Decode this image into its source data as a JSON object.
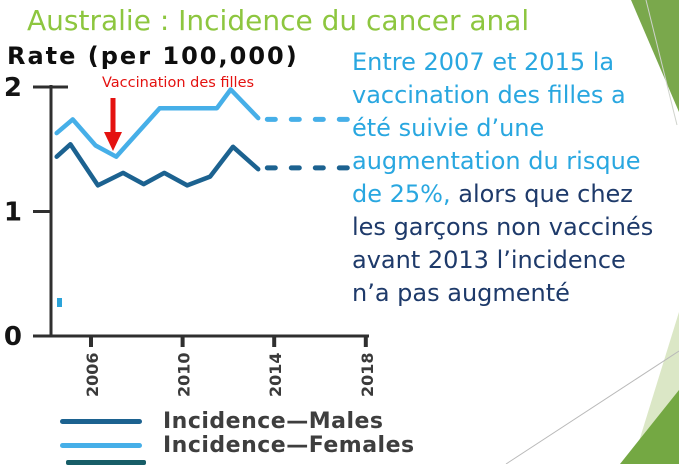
{
  "slide": {
    "title": "Australie : Incidence du cancer anal"
  },
  "colors": {
    "title_green": "#8dc63f",
    "accent": "#29a7e0",
    "dark": "#1e3a6a",
    "red": "#e41210",
    "males": "#1c6290",
    "females": "#46afe8",
    "axis": "#2f2f2f",
    "tick_label": "#3a3a3a",
    "legend_text": "#3e3e3e",
    "deco_green": "#7aa84c",
    "deco_green_dark": "#74a843",
    "deco_green_pale": "#dbe7c6",
    "legend_third": "#175d67",
    "axis_artifact": "#2ba3d9"
  },
  "chart_data": {
    "type": "line",
    "title": "Rate (per 100,000)",
    "xlabel": "",
    "ylabel": "Rate (per 100,000)",
    "xlim": [
      2004.2,
      2018.6
    ],
    "ylim": [
      0,
      2
    ],
    "x_ticks": [
      2006,
      2010,
      2014,
      2018
    ],
    "y_ticks": [
      0,
      1,
      2
    ],
    "grid": false,
    "legend_position": "bottom",
    "annotation": {
      "text": "Vaccination des filles",
      "arrow_points_to_year": 2007,
      "arrow_points_to_value": 1.44
    },
    "series": [
      {
        "name": "Incidence—Males",
        "style": "solid",
        "color_key": "males",
        "points": [
          [
            2004.5,
            1.44
          ],
          [
            2005.1,
            1.54
          ],
          [
            2006.3,
            1.21
          ],
          [
            2007.4,
            1.31
          ],
          [
            2008.3,
            1.22
          ],
          [
            2009.2,
            1.31
          ],
          [
            2010.2,
            1.21
          ],
          [
            2011.2,
            1.28
          ],
          [
            2012.2,
            1.52
          ],
          [
            2013.3,
            1.34
          ]
        ]
      },
      {
        "name": "Incidence—Males (projected, dashed)",
        "style": "dashed",
        "color_key": "males",
        "points": [
          [
            2013.7,
            1.35
          ],
          [
            2017.2,
            1.35
          ]
        ]
      },
      {
        "name": "Incidence—Females",
        "style": "solid",
        "color_key": "females",
        "points": [
          [
            2004.5,
            1.63
          ],
          [
            2005.2,
            1.74
          ],
          [
            2006.2,
            1.53
          ],
          [
            2007.1,
            1.44
          ],
          [
            2009.0,
            1.83
          ],
          [
            2011.5,
            1.83
          ],
          [
            2012.1,
            1.98
          ],
          [
            2013.3,
            1.75
          ]
        ]
      },
      {
        "name": "Incidence—Females (projected, dashed)",
        "style": "dashed",
        "color_key": "females",
        "points": [
          [
            2013.7,
            1.74
          ],
          [
            2017.2,
            1.74
          ]
        ]
      }
    ],
    "legend": [
      {
        "label": "Incidence—Males",
        "color_key": "males"
      },
      {
        "label": "Incidence—Females",
        "color_key": "females"
      }
    ]
  },
  "commentary": {
    "lines": [
      {
        "segments": [
          {
            "text": "Entre 2007 et 2015 la",
            "tone": "accent"
          }
        ]
      },
      {
        "segments": [
          {
            "text": "vaccination des filles a",
            "tone": "accent"
          }
        ]
      },
      {
        "segments": [
          {
            "text": "été suivie d’une",
            "tone": "accent"
          }
        ]
      },
      {
        "segments": [
          {
            "text": "augmentation du risque",
            "tone": "accent"
          }
        ]
      },
      {
        "segments": [
          {
            "text": "de 25%, ",
            "tone": "accent"
          },
          {
            "text": "alors que chez",
            "tone": "dark"
          }
        ]
      },
      {
        "segments": [
          {
            "text": "les garçons non vaccinés",
            "tone": "dark"
          }
        ]
      },
      {
        "segments": [
          {
            "text": "avant 2013 l’incidence",
            "tone": "dark"
          }
        ]
      },
      {
        "segments": [
          {
            "text": "n’a pas augmenté",
            "tone": "dark"
          }
        ]
      }
    ]
  }
}
